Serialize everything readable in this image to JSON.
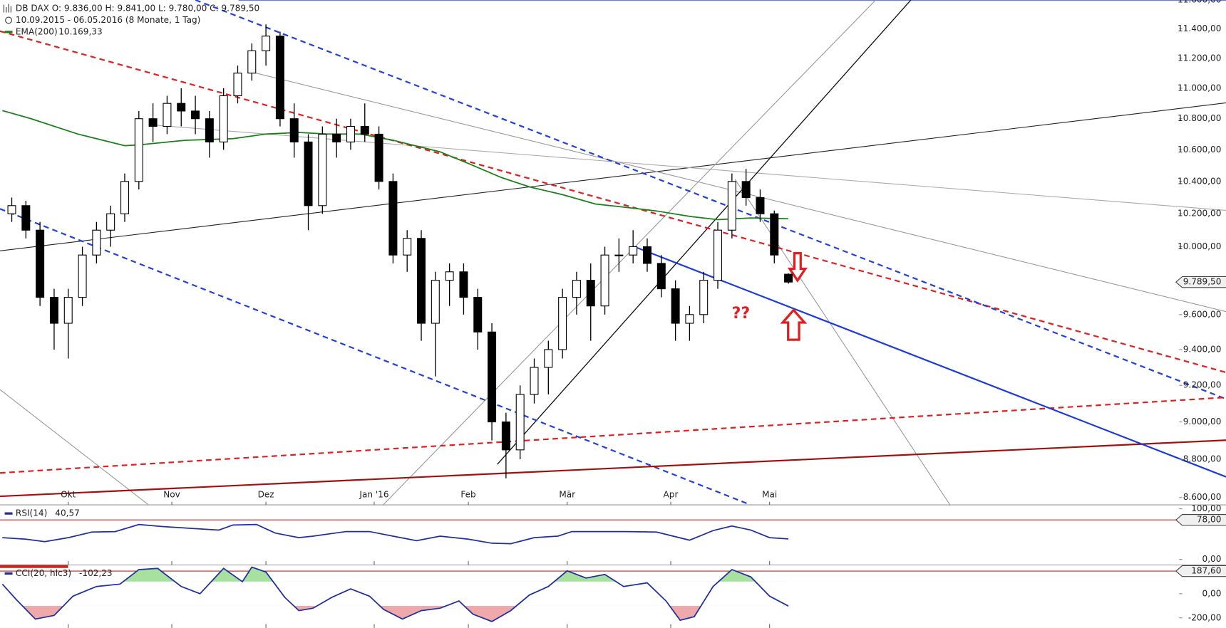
{
  "header": {
    "symbol_line": "DB DAX   O: 9.836,00   H: 9.841,00   L: 9.780,00   C: 9.789,50",
    "range_line": "10.09.2015 - 06.05.2016 (8 Monate, 1 Tag)"
  },
  "annotation": "??",
  "chart_data": [
    {
      "type": "candlestick",
      "log_scale": true,
      "grid": false,
      "up_color": "#ffffff",
      "down_color": "#000000",
      "xlim": [
        -0.5,
        250
      ],
      "ylim": [
        8562,
        11599
      ],
      "xticks": [
        {
          "value": 14,
          "label": "Okt"
        },
        {
          "value": 36,
          "label": "Nov"
        },
        {
          "value": 56,
          "label": "Dez"
        },
        {
          "value": 79,
          "label": "Jan '16"
        },
        {
          "value": 99,
          "label": "Feb"
        },
        {
          "value": 120,
          "label": "Mär"
        },
        {
          "value": 142,
          "label": "Apr"
        },
        {
          "value": 163,
          "label": "Mai"
        }
      ],
      "yticks": [
        {
          "value": 8600,
          "label": "8.600,00"
        },
        {
          "value": 8800,
          "label": "8.800,00"
        },
        {
          "value": 9000,
          "label": "9.000,00"
        },
        {
          "value": 9200,
          "label": "9.200,00"
        },
        {
          "value": 9400,
          "label": "9.400,00"
        },
        {
          "value": 9600,
          "label": "9.600,00"
        },
        {
          "value": 9800,
          "label": "9.800,00"
        },
        {
          "value": 10000,
          "label": "10.000,00"
        },
        {
          "value": 10200,
          "label": "10.200,00"
        },
        {
          "value": 10400,
          "label": "10.400,00"
        },
        {
          "value": 10600,
          "label": "10.600,00"
        },
        {
          "value": 10800,
          "label": "10.800,00"
        },
        {
          "value": 11000,
          "label": "11.000,00"
        },
        {
          "value": 11200,
          "label": "11.200,00"
        },
        {
          "value": 11400,
          "label": "11.400,00"
        },
        {
          "value": 11600,
          "label": "11.600,00"
        }
      ],
      "x": [
        2,
        5,
        8,
        11,
        14,
        17,
        20,
        23,
        26,
        29,
        32,
        35,
        38,
        41,
        44,
        47,
        50,
        53,
        56,
        59,
        62,
        65,
        68,
        71,
        74,
        77,
        80,
        83,
        86,
        89,
        92,
        95,
        98,
        101,
        104,
        107,
        110,
        113,
        116,
        119,
        122,
        125,
        128,
        131,
        134,
        137,
        140,
        143,
        146,
        149,
        152,
        155,
        158,
        161,
        164,
        167
      ],
      "open": [
        10200,
        10250,
        10100,
        9700,
        9550,
        9700,
        9950,
        10100,
        10200,
        10400,
        10800,
        10750,
        10900,
        10850,
        10800,
        10650,
        10950,
        11100,
        11250,
        11350,
        10800,
        10650,
        10250,
        10700,
        10650,
        10750,
        10700,
        10400,
        9950,
        10050,
        9550,
        9800,
        9850,
        9700,
        9500,
        9000,
        8850,
        9150,
        9300,
        9400,
        9700,
        9800,
        9650,
        9950,
        9950,
        10000,
        9900,
        9750,
        9550,
        9600,
        9800,
        10100,
        10400,
        10300,
        10200,
        9836
      ],
      "high": [
        10300,
        10280,
        10150,
        9750,
        9750,
        10000,
        10150,
        10250,
        10450,
        10850,
        10900,
        10950,
        11000,
        10950,
        10850,
        11000,
        11150,
        11300,
        11430,
        11380,
        10900,
        10700,
        10750,
        10800,
        10800,
        10900,
        10750,
        10450,
        10100,
        10100,
        9850,
        9900,
        9900,
        9750,
        9550,
        9050,
        9200,
        9350,
        9450,
        9750,
        9850,
        9900,
        10000,
        10050,
        10100,
        10050,
        9950,
        9800,
        9650,
        9850,
        10150,
        10450,
        10480,
        10350,
        10220,
        9841
      ],
      "low": [
        10150,
        10050,
        9650,
        9400,
        9350,
        9650,
        9900,
        10000,
        10150,
        10350,
        10650,
        10700,
        10750,
        10700,
        10550,
        10600,
        10900,
        11050,
        11150,
        10750,
        10550,
        10100,
        10200,
        10550,
        10600,
        10650,
        10350,
        9900,
        9850,
        9450,
        9250,
        9650,
        9600,
        9400,
        8900,
        8700,
        8800,
        9100,
        9150,
        9350,
        9600,
        9450,
        9600,
        9850,
        9900,
        9850,
        9700,
        9450,
        9450,
        9550,
        9750,
        10050,
        10250,
        10150,
        9900,
        9780
      ],
      "close": [
        10250,
        10100,
        9700,
        9550,
        9700,
        9950,
        10100,
        10200,
        10400,
        10800,
        10750,
        10900,
        10850,
        10800,
        10650,
        10950,
        11100,
        11250,
        11350,
        10800,
        10650,
        10250,
        10700,
        10650,
        10750,
        10700,
        10400,
        9950,
        10050,
        9550,
        9800,
        9850,
        9700,
        9500,
        9000,
        8850,
        9150,
        9300,
        9400,
        9700,
        9800,
        9650,
        9950,
        9950,
        10000,
        9900,
        9750,
        9550,
        9600,
        9800,
        10100,
        10400,
        10300,
        10200,
        9950,
        9789.5
      ],
      "last_price": {
        "value": 9789.5,
        "label": "9.789,50"
      },
      "series": [
        {
          "name": "EMA(200)",
          "color": "#1a801a",
          "value_label": "10.169,33",
          "x": [
            0,
            6,
            16,
            26,
            29,
            39,
            49,
            56,
            63,
            69,
            76,
            83,
            93,
            99,
            106,
            112,
            119,
            126,
            132,
            139,
            146,
            152,
            159,
            167
          ],
          "values": [
            10853,
            10801,
            10701,
            10626,
            10631,
            10661,
            10671,
            10701,
            10711,
            10701,
            10701,
            10661,
            10587,
            10513,
            10425,
            10366,
            10318,
            10260,
            10241,
            10217,
            10184,
            10164,
            10174,
            10169.33
          ]
        }
      ]
    },
    {
      "type": "line",
      "xlim": [
        -0.5,
        250
      ],
      "ylim": [
        -10.8,
        107.7
      ],
      "yticks": [
        {
          "value": 0,
          "label": "0,00"
        },
        {
          "value": 100,
          "label": "100,00"
        }
      ],
      "reference_line": {
        "value": 78,
        "label": "78,00",
        "color": "#d42020"
      },
      "series": [
        {
          "name": "RSI(14)",
          "color": "#1f2fa0",
          "value_label": "40,57",
          "x": [
            0,
            5,
            9,
            14,
            19,
            24,
            29,
            34,
            39,
            46,
            49,
            54,
            58,
            63,
            66,
            73,
            78,
            83,
            88,
            93,
            99,
            104,
            108,
            113,
            118,
            121,
            127,
            132,
            139,
            146,
            151,
            155,
            159,
            163,
            167
          ],
          "values": [
            43,
            40,
            35,
            43,
            54,
            55,
            69,
            65,
            62,
            58,
            68,
            69,
            52,
            43,
            46,
            55,
            55,
            46,
            37,
            46,
            40,
            32,
            31,
            43,
            46,
            55,
            55,
            55,
            54,
            38,
            57,
            66,
            58,
            43,
            40.57
          ]
        }
      ]
    },
    {
      "type": "line",
      "xlim": [
        -0.5,
        250
      ],
      "ylim": [
        -284,
        239
      ],
      "yticks": [
        {
          "value": -200,
          "label": "-200,00"
        },
        {
          "value": 0,
          "label": "0,00"
        }
      ],
      "reference_line": {
        "value": 187.6,
        "label": "187,60",
        "color": "#d42020"
      },
      "upper_band": 100,
      "lower_band": -100,
      "upper_fill": "#a8e0a0",
      "lower_fill": "#eeaaaa",
      "series": [
        {
          "name": "CCI(20, hlc3)",
          "color": "#1f2fa0",
          "value_label": "-102,23",
          "x": [
            0,
            3,
            7,
            11,
            15,
            20,
            25,
            29,
            33,
            38,
            42,
            47,
            51,
            53,
            56,
            60,
            63,
            66,
            70,
            74,
            78,
            81,
            85,
            89,
            93,
            97,
            100,
            104,
            108,
            112,
            116,
            120,
            124,
            128,
            132,
            137,
            141,
            144,
            147,
            151,
            155,
            159,
            163,
            167
          ],
          "values": [
            80,
            -50,
            -210,
            -180,
            -20,
            60,
            80,
            200,
            210,
            60,
            0,
            210,
            100,
            220,
            180,
            -30,
            -140,
            -120,
            -30,
            40,
            -20,
            -130,
            -210,
            -140,
            -120,
            -60,
            -170,
            -230,
            -140,
            -10,
            60,
            190,
            130,
            160,
            60,
            90,
            -60,
            -220,
            -190,
            60,
            200,
            140,
            -20,
            -102.23
          ]
        }
      ]
    }
  ]
}
